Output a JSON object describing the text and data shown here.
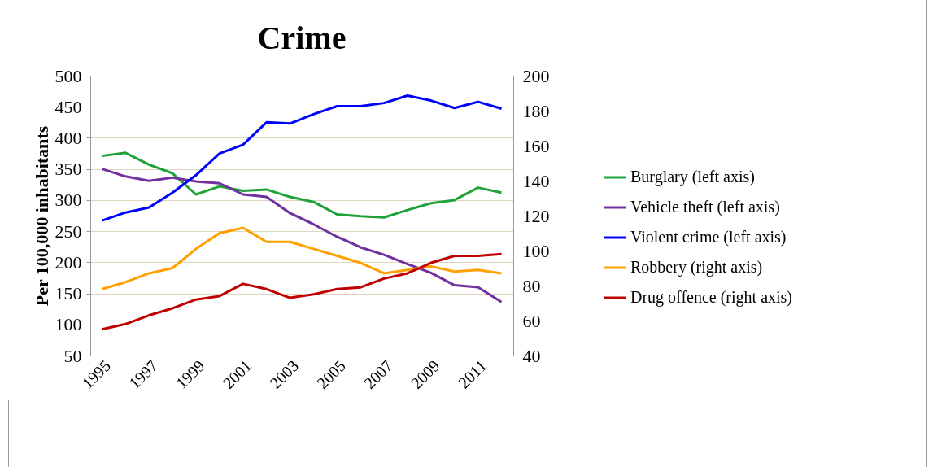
{
  "chart_data": {
    "type": "line",
    "title": "Crime",
    "ylabel": "Per 100,000 inhabitants",
    "categories": [
      "1995",
      null,
      "1997",
      null,
      "1999",
      null,
      "2001",
      null,
      "2003",
      null,
      "2005",
      null,
      "2007",
      null,
      "2009",
      null,
      "2011",
      null
    ],
    "ylim": [
      50,
      500
    ],
    "yticks": [
      50,
      100,
      150,
      200,
      250,
      300,
      350,
      400,
      450,
      500
    ],
    "y2lim": [
      40,
      200
    ],
    "y2ticks": [
      40,
      60,
      80,
      100,
      120,
      140,
      160,
      180,
      200
    ],
    "grid": "y",
    "legend": "right",
    "marker": "none",
    "line_style": "solid",
    "series": [
      {
        "name": "Burglary (left axis)",
        "color": "#1fa23a",
        "values": [
          371,
          376,
          357,
          343,
          309,
          322,
          315,
          317,
          305,
          297,
          277,
          274,
          272,
          284,
          295,
          300,
          320,
          312
        ]
      },
      {
        "name": "Vehicle theft (left axis)",
        "color": "#7030a0",
        "values": [
          350,
          338,
          331,
          336,
          330,
          327,
          309,
          305,
          279,
          261,
          241,
          224,
          212,
          197,
          183,
          163,
          160,
          136
        ]
      },
      {
        "name": "Violent crime (left axis)",
        "color": "#0000ff",
        "values": [
          267,
          280,
          288,
          312,
          340,
          375,
          389,
          425,
          423,
          438,
          451,
          451,
          456,
          468,
          460,
          448,
          458,
          447
        ]
      },
      {
        "name": "Robbery (right axis)",
        "color": "#ffa000",
        "axis": "y2",
        "values": [
          78,
          82,
          87,
          90,
          101,
          110,
          113,
          105,
          105,
          101,
          97,
          93,
          87,
          89,
          91,
          88,
          89,
          87
        ]
      },
      {
        "name": "Drug offence (right axis)",
        "color": "#c00000",
        "axis": "y2",
        "values": [
          55,
          58,
          63,
          67,
          72,
          74,
          81,
          78,
          73,
          75,
          78,
          79,
          84,
          87,
          93,
          97,
          97,
          98
        ]
      }
    ]
  }
}
